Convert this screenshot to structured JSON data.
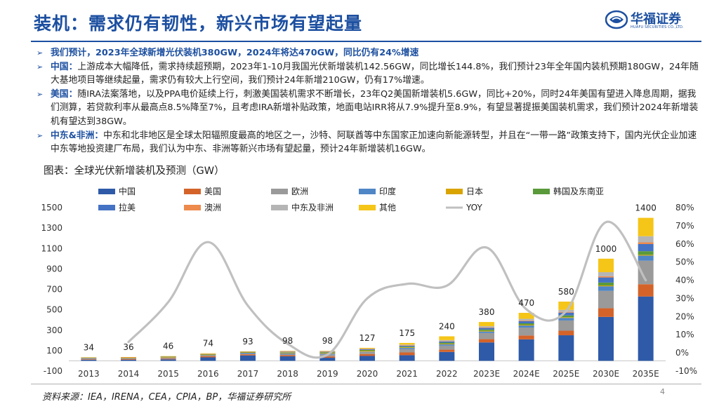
{
  "header": {
    "title": "装机：需求仍有韧性，新兴市场有望起量",
    "logo_name": "华福证券",
    "logo_sub": "HUAFU SECURITIES CO.,LTD."
  },
  "bullets": [
    {
      "lead": "我们预计，2023年全球新增光伏装机380GW，2024年将达470GW，同比仍有24%增速",
      "body": ""
    },
    {
      "lead": "中国：",
      "body": "上游成本大幅降低，需求持续超预期，2023年1-10月我国光伏新增装机142.56GW，同比增长144.8%，我们预计23年全年国内装机预期180GW，24年随大基地项目等继续起量，需求仍有较大上行空间，我们预计24年新增210GW，仍有17%增速。"
    },
    {
      "lead": "美国：",
      "body": "随IRA法案落地，以及PPA电价延续上行，刺激美国装机需求不断增长，23年Q2美国新增装机5.6GW，同比+20%，同时24年美国有望进入降息周期，据我们测算，若贷款利率从最高点8.5%降至7%，且考虑IRA新增补贴政策，地面电站IRR将从7.9%提升至8.9%，有望显著提振美国装机需求，我们预计2024年新增装机有望达到38GW。"
    },
    {
      "lead": "中东&非洲：",
      "body": "中东和北非地区是全球太阳辐照度最高的地区之一，沙特、阿联酋等中东国家正加速向新能源转型，并且在“一带一路”政策支持下，国内光伏企业加速中东等地投资建厂布局，我们认为中东、非洲等新兴市场有望起量，预计24年新增装机16GW。"
    }
  ],
  "chart_title": "图表：全球光伏新增装机及预测（GW）",
  "chart_data": {
    "type": "bar",
    "stacked": true,
    "categories": [
      "2013",
      "2014",
      "2015",
      "2016",
      "2017",
      "2018",
      "2019",
      "2020",
      "2021",
      "2022",
      "2023E",
      "2024E",
      "2025E",
      "2030E",
      "2035E"
    ],
    "totals": [
      34,
      36,
      46,
      74,
      93,
      98,
      98,
      127,
      175,
      240,
      380,
      470,
      580,
      1000,
      1400
    ],
    "series": [
      {
        "name": "中国",
        "color": "#2e5aa8",
        "values": [
          11,
          11,
          15,
          34,
          53,
          44,
          30,
          48,
          55,
          87,
          180,
          210,
          250,
          430,
          630
        ]
      },
      {
        "name": "美国",
        "color": "#d4632a",
        "values": [
          5,
          6,
          7,
          11,
          11,
          11,
          13,
          19,
          27,
          22,
          32,
          38,
          45,
          85,
          120
        ]
      },
      {
        "name": "欧洲",
        "color": "#9a9a9a",
        "values": [
          11,
          8,
          8,
          6,
          6,
          10,
          20,
          20,
          32,
          40,
          60,
          78,
          100,
          170,
          230
        ]
      },
      {
        "name": "印度",
        "color": "#4f86c6",
        "values": [
          1,
          1,
          2,
          4,
          9,
          8,
          8,
          4,
          12,
          13,
          15,
          20,
          25,
          45,
          50
        ]
      },
      {
        "name": "日本",
        "color": "#d9a400",
        "values": [
          6,
          9,
          9,
          8,
          7,
          7,
          7,
          8,
          6,
          6,
          7,
          7,
          7,
          8,
          8
        ]
      },
      {
        "name": "韩国及东南亚",
        "color": "#5a9a3a",
        "values": [
          0,
          0,
          1,
          2,
          1,
          4,
          6,
          7,
          7,
          10,
          12,
          14,
          17,
          28,
          35
        ]
      },
      {
        "name": "拉美",
        "color": "#4472c4",
        "values": [
          0,
          0,
          1,
          2,
          3,
          4,
          4,
          6,
          8,
          12,
          16,
          22,
          28,
          50,
          70
        ]
      },
      {
        "name": "澳洲",
        "color": "#ed8a4c",
        "values": [
          0,
          1,
          1,
          1,
          1,
          4,
          4,
          4,
          5,
          4,
          5,
          6,
          7,
          12,
          17
        ]
      },
      {
        "name": "中东及非洲",
        "color": "#b5b5b5",
        "values": [
          0,
          0,
          1,
          2,
          1,
          3,
          3,
          4,
          7,
          9,
          12,
          16,
          20,
          40,
          60
        ]
      },
      {
        "name": "其他",
        "color": "#f5c518",
        "values": [
          0,
          0,
          1,
          4,
          1,
          3,
          3,
          7,
          16,
          37,
          41,
          59,
          81,
          132,
          180
        ]
      }
    ],
    "yoy": {
      "name": "YOY",
      "color": "#c0c0c0",
      "values": [
        null,
        6,
        28,
        61,
        26,
        5,
        -1,
        30,
        38,
        37,
        58,
        24,
        23,
        72,
        40
      ]
    },
    "y_left": {
      "min": -100,
      "max": 1500,
      "ticks": [
        -100,
        100,
        300,
        500,
        700,
        900,
        1100,
        1300,
        1500
      ]
    },
    "y_right": {
      "min": -10,
      "max": 80,
      "ticks": [
        "-10%",
        "0%",
        "10%",
        "20%",
        "30%",
        "40%",
        "50%",
        "60%",
        "70%",
        "80%"
      ],
      "tick_values": [
        -10,
        0,
        10,
        20,
        30,
        40,
        50,
        60,
        70,
        80
      ]
    },
    "legend": [
      "中国",
      "美国",
      "欧洲",
      "印度",
      "日本",
      "韩国及东南亚",
      "拉美",
      "澳洲",
      "中东及非洲",
      "其他",
      "YOY"
    ]
  },
  "footer": {
    "source": "资料来源：IEA，IRENA，CEA，CPIA，BP，华福证券研究所",
    "page": "4"
  }
}
